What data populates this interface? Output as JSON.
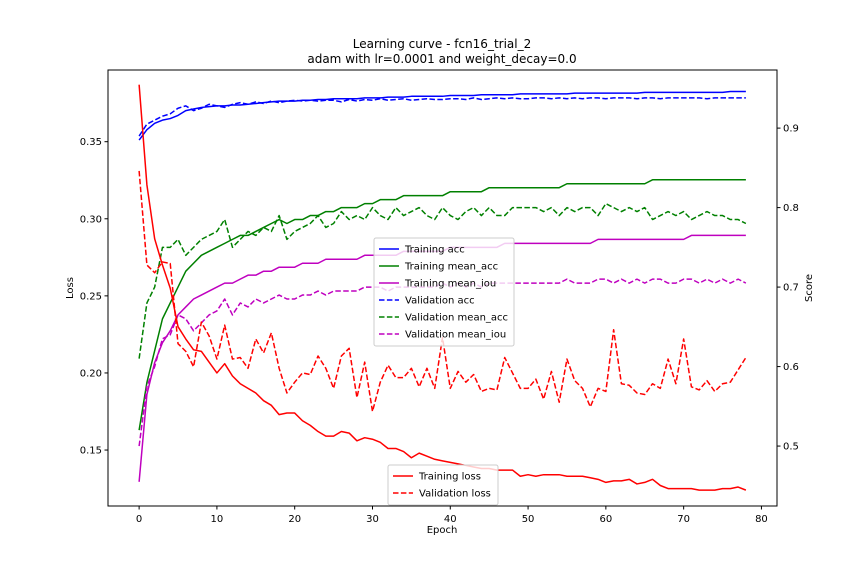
{
  "chart_data": {
    "type": "line",
    "title": "Learning curve - fcn16_trial_2",
    "subtitle": "adam with lr=0.0001 and weight_decay=0.0",
    "xlabel": "Epoch",
    "ylabel_left": "Loss",
    "ylabel_right": "Score",
    "xlim": [
      -4,
      82
    ],
    "ylim_left": [
      0.1137,
      0.3965
    ],
    "ylim_right": [
      0.4246,
      0.9731
    ],
    "xticks": [
      "0",
      "10",
      "20",
      "30",
      "40",
      "50",
      "60",
      "70",
      "80"
    ],
    "yticks_left": [
      "0.15",
      "0.20",
      "0.25",
      "0.30",
      "0.35"
    ],
    "yticks_right": [
      "0.5",
      "0.6",
      "0.7",
      "0.8",
      "0.9"
    ],
    "grid": false,
    "left_legend_placement": "lower center",
    "right_legend_placement": "center",
    "colors": {
      "loss_axis_label": "#ff0000",
      "loss": "#ff0000",
      "acc": "#0000ff",
      "mean_acc": "#008000",
      "mean_iou": "#bf00bf"
    },
    "left_series": [
      {
        "name": "Training loss",
        "color": "#ff0000",
        "style": "solid",
        "values": [
          0.387,
          0.322,
          0.287,
          0.27,
          0.255,
          0.23,
          0.222,
          0.215,
          0.214,
          0.207,
          0.2,
          0.206,
          0.198,
          0.193,
          0.19,
          0.187,
          0.182,
          0.179,
          0.173,
          0.174,
          0.174,
          0.169,
          0.166,
          0.162,
          0.159,
          0.159,
          0.162,
          0.161,
          0.156,
          0.158,
          0.157,
          0.155,
          0.151,
          0.151,
          0.149,
          0.145,
          0.148,
          0.146,
          0.144,
          0.143,
          0.142,
          0.141,
          0.14,
          0.139,
          0.138,
          0.138,
          0.137,
          0.137,
          0.137,
          0.133,
          0.134,
          0.133,
          0.134,
          0.134,
          0.134,
          0.133,
          0.133,
          0.133,
          0.132,
          0.131,
          0.129,
          0.13,
          0.13,
          0.131,
          0.128,
          0.129,
          0.131,
          0.127,
          0.125,
          0.125,
          0.125,
          0.125,
          0.124,
          0.124,
          0.124,
          0.125,
          0.125,
          0.126,
          0.124
        ]
      },
      {
        "name": "Validation loss",
        "color": "#ff0000",
        "style": "dashed",
        "values": [
          0.331,
          0.27,
          0.265,
          0.272,
          0.271,
          0.219,
          0.214,
          0.204,
          0.233,
          0.224,
          0.209,
          0.231,
          0.209,
          0.21,
          0.203,
          0.222,
          0.213,
          0.226,
          0.203,
          0.187,
          0.194,
          0.2,
          0.199,
          0.211,
          0.203,
          0.19,
          0.211,
          0.216,
          0.184,
          0.207,
          0.175,
          0.194,
          0.205,
          0.197,
          0.197,
          0.203,
          0.191,
          0.203,
          0.19,
          0.223,
          0.19,
          0.201,
          0.194,
          0.199,
          0.188,
          0.19,
          0.189,
          0.21,
          0.2,
          0.19,
          0.19,
          0.196,
          0.183,
          0.201,
          0.181,
          0.209,
          0.195,
          0.19,
          0.178,
          0.19,
          0.188,
          0.228,
          0.193,
          0.192,
          0.187,
          0.186,
          0.193,
          0.19,
          0.209,
          0.193,
          0.222,
          0.191,
          0.189,
          0.195,
          0.188,
          0.193,
          0.194,
          0.202,
          0.21
        ]
      }
    ],
    "right_series": [
      {
        "name": "Training acc",
        "color": "#0000ff",
        "style": "solid",
        "values": [
          0.885,
          0.898,
          0.906,
          0.91,
          0.912,
          0.916,
          0.922,
          0.924,
          0.926,
          0.927,
          0.928,
          0.928,
          0.929,
          0.929,
          0.93,
          0.931,
          0.932,
          0.933,
          0.934,
          0.934,
          0.934,
          0.935,
          0.935,
          0.936,
          0.936,
          0.937,
          0.937,
          0.937,
          0.937,
          0.938,
          0.938,
          0.938,
          0.939,
          0.939,
          0.939,
          0.94,
          0.94,
          0.94,
          0.94,
          0.94,
          0.941,
          0.941,
          0.941,
          0.941,
          0.942,
          0.942,
          0.942,
          0.942,
          0.942,
          0.943,
          0.943,
          0.943,
          0.943,
          0.943,
          0.943,
          0.943,
          0.944,
          0.944,
          0.944,
          0.944,
          0.944,
          0.944,
          0.944,
          0.944,
          0.944,
          0.945,
          0.945,
          0.945,
          0.945,
          0.945,
          0.945,
          0.945,
          0.945,
          0.945,
          0.945,
          0.945,
          0.946,
          0.946,
          0.946
        ]
      },
      {
        "name": "Training mean_acc",
        "color": "#008000",
        "style": "solid",
        "values": [
          0.52,
          0.58,
          0.62,
          0.66,
          0.68,
          0.7,
          0.72,
          0.73,
          0.74,
          0.745,
          0.75,
          0.755,
          0.76,
          0.765,
          0.765,
          0.77,
          0.775,
          0.78,
          0.785,
          0.78,
          0.785,
          0.785,
          0.79,
          0.79,
          0.795,
          0.795,
          0.8,
          0.8,
          0.8,
          0.805,
          0.805,
          0.81,
          0.81,
          0.81,
          0.815,
          0.815,
          0.815,
          0.815,
          0.815,
          0.815,
          0.82,
          0.82,
          0.82,
          0.82,
          0.82,
          0.825,
          0.825,
          0.825,
          0.825,
          0.825,
          0.825,
          0.825,
          0.825,
          0.825,
          0.825,
          0.83,
          0.83,
          0.83,
          0.83,
          0.83,
          0.83,
          0.83,
          0.83,
          0.83,
          0.83,
          0.83,
          0.835,
          0.835,
          0.835,
          0.835,
          0.835,
          0.835,
          0.835,
          0.835,
          0.835,
          0.835,
          0.835,
          0.835,
          0.835
        ]
      },
      {
        "name": "Training mean_iou",
        "color": "#bf00bf",
        "style": "solid",
        "values": [
          0.455,
          0.565,
          0.605,
          0.63,
          0.645,
          0.665,
          0.675,
          0.685,
          0.69,
          0.695,
          0.7,
          0.705,
          0.705,
          0.71,
          0.715,
          0.715,
          0.72,
          0.72,
          0.725,
          0.725,
          0.725,
          0.73,
          0.73,
          0.73,
          0.735,
          0.735,
          0.735,
          0.735,
          0.735,
          0.74,
          0.74,
          0.74,
          0.74,
          0.74,
          0.745,
          0.745,
          0.745,
          0.745,
          0.745,
          0.745,
          0.75,
          0.75,
          0.75,
          0.75,
          0.75,
          0.75,
          0.75,
          0.755,
          0.755,
          0.755,
          0.755,
          0.755,
          0.755,
          0.755,
          0.755,
          0.755,
          0.755,
          0.755,
          0.755,
          0.76,
          0.76,
          0.76,
          0.76,
          0.76,
          0.76,
          0.76,
          0.76,
          0.76,
          0.76,
          0.76,
          0.76,
          0.765,
          0.765,
          0.765,
          0.765,
          0.765,
          0.765,
          0.765,
          0.765
        ]
      },
      {
        "name": "Validation acc",
        "color": "#0000ff",
        "style": "dashed",
        "values": [
          0.89,
          0.905,
          0.91,
          0.915,
          0.918,
          0.925,
          0.928,
          0.922,
          0.925,
          0.93,
          0.928,
          0.926,
          0.93,
          0.932,
          0.93,
          0.933,
          0.931,
          0.934,
          0.932,
          0.934,
          0.935,
          0.934,
          0.935,
          0.934,
          0.935,
          0.935,
          0.933,
          0.936,
          0.934,
          0.936,
          0.935,
          0.937,
          0.935,
          0.936,
          0.937,
          0.935,
          0.936,
          0.937,
          0.936,
          0.936,
          0.937,
          0.937,
          0.936,
          0.938,
          0.936,
          0.937,
          0.938,
          0.937,
          0.938,
          0.937,
          0.937,
          0.938,
          0.938,
          0.937,
          0.938,
          0.937,
          0.938,
          0.937,
          0.938,
          0.938,
          0.937,
          0.938,
          0.938,
          0.938,
          0.937,
          0.938,
          0.938,
          0.937,
          0.938,
          0.938,
          0.938,
          0.938,
          0.938,
          0.937,
          0.938,
          0.938,
          0.938,
          0.938,
          0.938
        ]
      },
      {
        "name": "Validation mean_acc",
        "color": "#008000",
        "style": "dashed",
        "values": [
          0.61,
          0.68,
          0.7,
          0.75,
          0.75,
          0.76,
          0.74,
          0.75,
          0.76,
          0.765,
          0.77,
          0.785,
          0.75,
          0.76,
          0.77,
          0.765,
          0.775,
          0.77,
          0.79,
          0.76,
          0.77,
          0.775,
          0.78,
          0.79,
          0.775,
          0.78,
          0.795,
          0.785,
          0.79,
          0.785,
          0.8,
          0.79,
          0.785,
          0.8,
          0.79,
          0.795,
          0.8,
          0.79,
          0.785,
          0.8,
          0.79,
          0.785,
          0.795,
          0.8,
          0.79,
          0.8,
          0.79,
          0.79,
          0.8,
          0.8,
          0.8,
          0.8,
          0.795,
          0.8,
          0.79,
          0.8,
          0.795,
          0.8,
          0.8,
          0.79,
          0.805,
          0.8,
          0.795,
          0.8,
          0.795,
          0.8,
          0.785,
          0.79,
          0.795,
          0.79,
          0.795,
          0.785,
          0.79,
          0.795,
          0.79,
          0.79,
          0.785,
          0.785,
          0.78
        ]
      },
      {
        "name": "Validation mean_iou",
        "color": "#bf00bf",
        "style": "dashed",
        "values": [
          0.5,
          0.575,
          0.6,
          0.635,
          0.64,
          0.665,
          0.66,
          0.645,
          0.655,
          0.665,
          0.67,
          0.685,
          0.665,
          0.68,
          0.675,
          0.685,
          0.68,
          0.685,
          0.69,
          0.685,
          0.685,
          0.69,
          0.69,
          0.695,
          0.69,
          0.695,
          0.695,
          0.695,
          0.695,
          0.7,
          0.7,
          0.7,
          0.695,
          0.7,
          0.7,
          0.7,
          0.7,
          0.7,
          0.7,
          0.705,
          0.7,
          0.705,
          0.7,
          0.705,
          0.7,
          0.705,
          0.705,
          0.705,
          0.705,
          0.705,
          0.705,
          0.705,
          0.705,
          0.705,
          0.705,
          0.71,
          0.705,
          0.705,
          0.705,
          0.71,
          0.71,
          0.705,
          0.71,
          0.705,
          0.71,
          0.705,
          0.71,
          0.71,
          0.705,
          0.705,
          0.71,
          0.71,
          0.705,
          0.71,
          0.705,
          0.71,
          0.705,
          0.71,
          0.705
        ]
      }
    ]
  }
}
